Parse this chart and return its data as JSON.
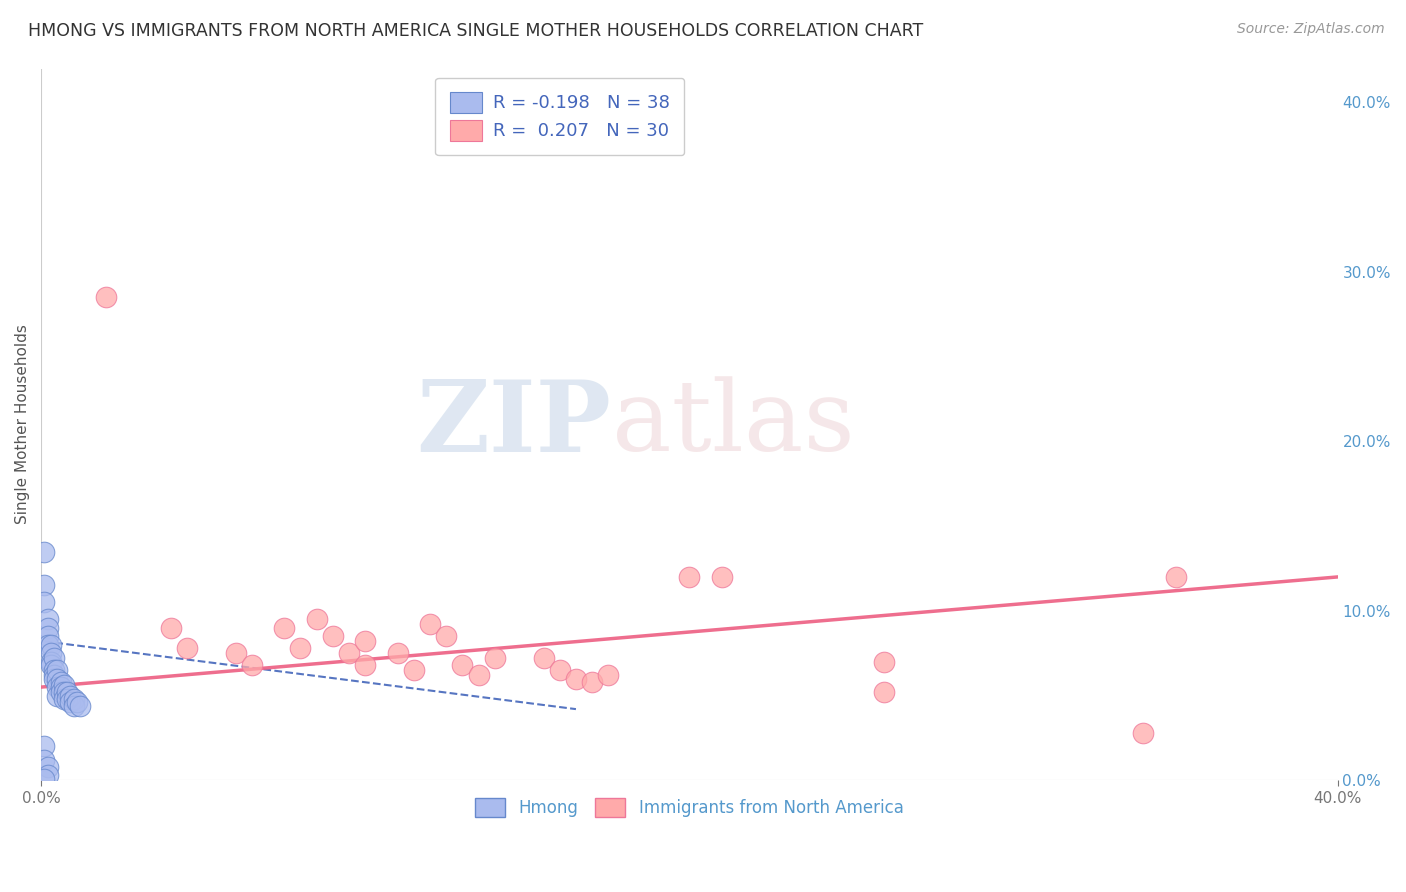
{
  "title": "HMONG VS IMMIGRANTS FROM NORTH AMERICA SINGLE MOTHER HOUSEHOLDS CORRELATION CHART",
  "source": "Source: ZipAtlas.com",
  "ylabel": "Single Mother Households",
  "xlim": [
    0.0,
    0.4
  ],
  "ylim": [
    0.0,
    0.42
  ],
  "xtick_positions": [
    0.0,
    0.4
  ],
  "xtick_labels": [
    "0.0%",
    "40.0%"
  ],
  "yticks_right": [
    0.0,
    0.1,
    0.2,
    0.3,
    0.4
  ],
  "ytick_labels_right": [
    "0.0%",
    "10.0%",
    "20.0%",
    "30.0%",
    "40.0%"
  ],
  "legend_blue_label": "R = -0.198   N = 38",
  "legend_pink_label": "R =  0.207   N = 30",
  "legend_bottom_blue": "Hmong",
  "legend_bottom_pink": "Immigrants from North America",
  "watermark_zip": "ZIP",
  "watermark_atlas": "atlas",
  "blue_color": "#AABBEE",
  "pink_color": "#FFAAAA",
  "blue_edge_color": "#6688CC",
  "pink_edge_color": "#EE7799",
  "blue_line_color": "#4466BB",
  "pink_line_color": "#EE6688",
  "blue_points": [
    [
      0.001,
      0.135
    ],
    [
      0.001,
      0.115
    ],
    [
      0.001,
      0.105
    ],
    [
      0.002,
      0.095
    ],
    [
      0.002,
      0.09
    ],
    [
      0.002,
      0.085
    ],
    [
      0.002,
      0.08
    ],
    [
      0.003,
      0.08
    ],
    [
      0.003,
      0.075
    ],
    [
      0.003,
      0.07
    ],
    [
      0.003,
      0.068
    ],
    [
      0.004,
      0.072
    ],
    [
      0.004,
      0.065
    ],
    [
      0.004,
      0.062
    ],
    [
      0.004,
      0.06
    ],
    [
      0.005,
      0.065
    ],
    [
      0.005,
      0.06
    ],
    [
      0.005,
      0.055
    ],
    [
      0.005,
      0.05
    ],
    [
      0.006,
      0.058
    ],
    [
      0.006,
      0.055
    ],
    [
      0.006,
      0.052
    ],
    [
      0.007,
      0.056
    ],
    [
      0.007,
      0.052
    ],
    [
      0.007,
      0.048
    ],
    [
      0.008,
      0.052
    ],
    [
      0.008,
      0.048
    ],
    [
      0.009,
      0.05
    ],
    [
      0.009,
      0.046
    ],
    [
      0.01,
      0.048
    ],
    [
      0.01,
      0.044
    ],
    [
      0.011,
      0.046
    ],
    [
      0.012,
      0.044
    ],
    [
      0.001,
      0.02
    ],
    [
      0.001,
      0.012
    ],
    [
      0.002,
      0.008
    ],
    [
      0.002,
      0.003
    ],
    [
      0.001,
      0.001
    ]
  ],
  "pink_points": [
    [
      0.02,
      0.285
    ],
    [
      0.04,
      0.09
    ],
    [
      0.045,
      0.078
    ],
    [
      0.06,
      0.075
    ],
    [
      0.065,
      0.068
    ],
    [
      0.075,
      0.09
    ],
    [
      0.08,
      0.078
    ],
    [
      0.085,
      0.095
    ],
    [
      0.09,
      0.085
    ],
    [
      0.095,
      0.075
    ],
    [
      0.1,
      0.082
    ],
    [
      0.1,
      0.068
    ],
    [
      0.11,
      0.075
    ],
    [
      0.115,
      0.065
    ],
    [
      0.12,
      0.092
    ],
    [
      0.125,
      0.085
    ],
    [
      0.13,
      0.068
    ],
    [
      0.135,
      0.062
    ],
    [
      0.14,
      0.072
    ],
    [
      0.155,
      0.072
    ],
    [
      0.16,
      0.065
    ],
    [
      0.165,
      0.06
    ],
    [
      0.17,
      0.058
    ],
    [
      0.175,
      0.062
    ],
    [
      0.2,
      0.12
    ],
    [
      0.21,
      0.12
    ],
    [
      0.26,
      0.052
    ],
    [
      0.35,
      0.12
    ],
    [
      0.26,
      0.07
    ],
    [
      0.34,
      0.028
    ]
  ],
  "blue_trend_x": [
    0.001,
    0.165
  ],
  "blue_trend_y": [
    0.082,
    0.042
  ],
  "pink_trend_x": [
    0.0,
    0.4
  ],
  "pink_trend_y": [
    0.055,
    0.12
  ],
  "grid_color": "#CCCCCC",
  "background_color": "#FFFFFF",
  "title_color": "#333333",
  "right_tick_color": "#5599CC"
}
